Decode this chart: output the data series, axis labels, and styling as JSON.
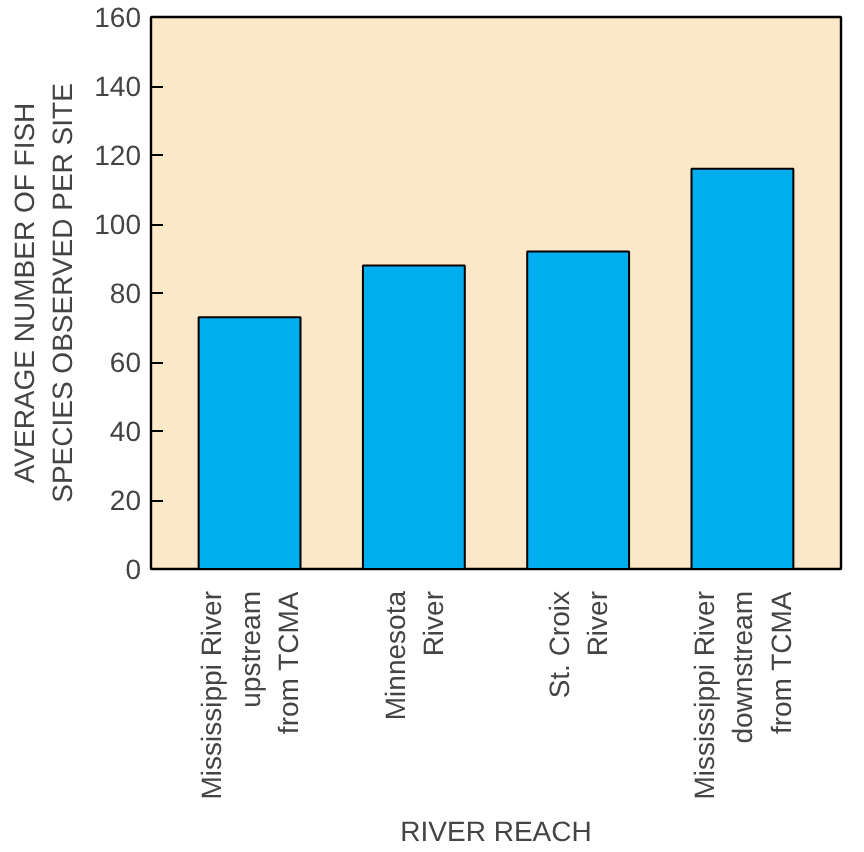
{
  "chart_data": {
    "type": "bar",
    "categories": [
      "Mississippi River\nupstream\nfrom TCMA",
      "Minnesota\nRiver",
      "St. Croix\nRiver",
      "Mississippi River\ndownstream\nfrom TCMA"
    ],
    "values": [
      73,
      88,
      92,
      116
    ],
    "color": "#00aeef",
    "xlabel": "RIVER REACH",
    "ylabel": "AVERAGE NUMBER OF FISH\nSPECIES OBSERVED PER SITE",
    "ylim": [
      0,
      160
    ],
    "yticks": [
      0,
      20,
      40,
      60,
      80,
      100,
      120,
      140,
      160
    ],
    "grid": false
  }
}
